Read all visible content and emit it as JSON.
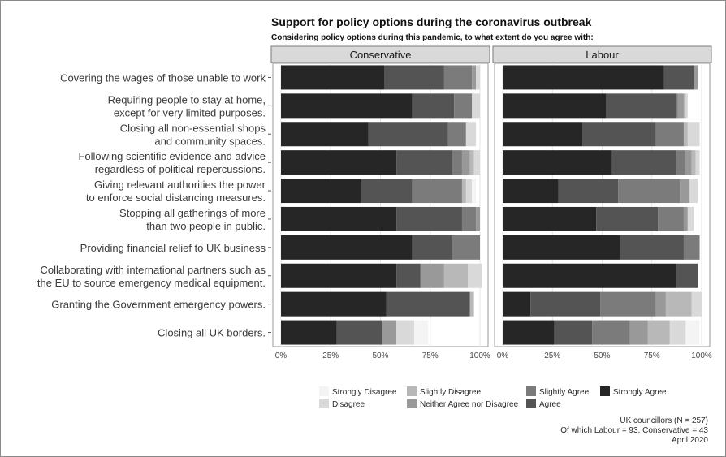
{
  "chart_data": {
    "type": "bar",
    "orientation": "horizontal",
    "stacked": true,
    "normalized": true,
    "title": "Support for policy options during the coronavirus outbreak",
    "subtitle": "Considering policy options during this pandemic, to what extent do you agree with:",
    "panels": [
      "Conservative",
      "Labour"
    ],
    "categories": [
      "Covering the wages of those unable to work",
      "Requiring people to stay at home,\nexcept for very limited purposes.",
      "Closing all non-essential shops\nand community spaces.",
      "Following scientific evidence and advice\nregardless of political repercussions.",
      "Giving relevant authorities the power\nto enforce social distancing measures.",
      "Stopping all gatherings of more\nthan two people in public.",
      "Providing financial relief to UK business",
      "Collaborating with international partners such as\nthe EU to source emergency medical equipment.",
      "Granting the Government emergency powers.",
      "Closing all UK borders."
    ],
    "x_ticks": [
      "0%",
      "25%",
      "50%",
      "75%",
      "100%"
    ],
    "xlim": [
      0,
      100
    ],
    "grid": true,
    "legend_position": "bottom",
    "series": [
      {
        "name": "Strongly Disagree",
        "color": "#f4f4f4"
      },
      {
        "name": "Disagree",
        "color": "#d9d9d9"
      },
      {
        "name": "Slightly Disagree",
        "color": "#b8b8b8"
      },
      {
        "name": "Neither Agree nor Disagree",
        "color": "#999999"
      },
      {
        "name": "Slightly Agree",
        "color": "#7b7b7b"
      },
      {
        "name": "Agree",
        "color": "#545454"
      },
      {
        "name": "Strongly Agree",
        "color": "#262626"
      }
    ],
    "values": {
      "Conservative": [
        [
          0,
          2,
          0,
          2,
          14,
          30,
          52
        ],
        [
          0,
          4,
          0,
          0,
          9,
          21,
          66
        ],
        [
          0,
          5,
          0,
          0,
          9,
          40,
          44
        ],
        [
          0,
          3,
          2,
          4,
          5,
          28,
          58
        ],
        [
          2,
          3,
          2,
          0,
          25,
          26,
          40
        ],
        [
          0,
          0,
          0,
          2,
          7,
          33,
          58
        ],
        [
          0,
          0,
          0,
          0,
          14,
          20,
          66
        ],
        [
          0,
          7,
          12,
          12,
          0,
          12,
          58
        ],
        [
          0,
          0,
          2,
          0,
          0,
          42,
          53
        ],
        [
          7,
          9,
          0,
          7,
          0,
          23,
          28
        ]
      ],
      "Labour": [
        [
          0,
          0,
          0,
          2,
          0,
          15,
          81
        ],
        [
          0,
          1,
          1,
          3,
          1,
          35,
          52
        ],
        [
          0,
          6,
          2,
          0,
          14,
          37,
          40
        ],
        [
          0,
          2,
          2,
          3,
          5,
          32,
          55
        ],
        [
          0,
          4,
          0,
          5,
          31,
          30,
          28
        ],
        [
          0,
          3,
          0,
          2,
          13,
          31,
          47
        ],
        [
          0,
          0,
          0,
          0,
          8,
          32,
          59
        ],
        [
          0,
          0,
          0,
          0,
          0,
          11,
          87
        ],
        [
          0,
          5,
          13,
          5,
          28,
          35,
          14
        ],
        [
          7,
          8,
          11,
          9,
          19,
          19,
          26
        ]
      ]
    },
    "caption": [
      "UK councillors (N = 257)",
      "Of which Labour = 93, Conservative = 43",
      "April 2020"
    ]
  }
}
